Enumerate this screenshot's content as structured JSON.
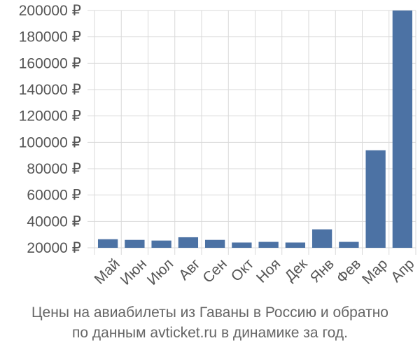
{
  "chart_data": {
    "type": "bar",
    "categories": [
      "Май",
      "Июн",
      "Июл",
      "Авг",
      "Сен",
      "Окт",
      "Ноя",
      "Дек",
      "Янв",
      "Фев",
      "Мар",
      "Апр"
    ],
    "values": [
      26500,
      26000,
      25500,
      28000,
      26000,
      24000,
      24500,
      24000,
      34000,
      24500,
      94000,
      200000
    ],
    "ylim": [
      20000,
      200000
    ],
    "yticks": [
      20000,
      40000,
      60000,
      80000,
      100000,
      120000,
      140000,
      160000,
      180000,
      200000
    ],
    "currency": "₽",
    "grid": true,
    "bar_color": "#4c72a4",
    "title": "Цены на авиабилеты из Гаваны в Россию и обратно",
    "subtitle": "по данным avticket.ru в динамике за год."
  }
}
